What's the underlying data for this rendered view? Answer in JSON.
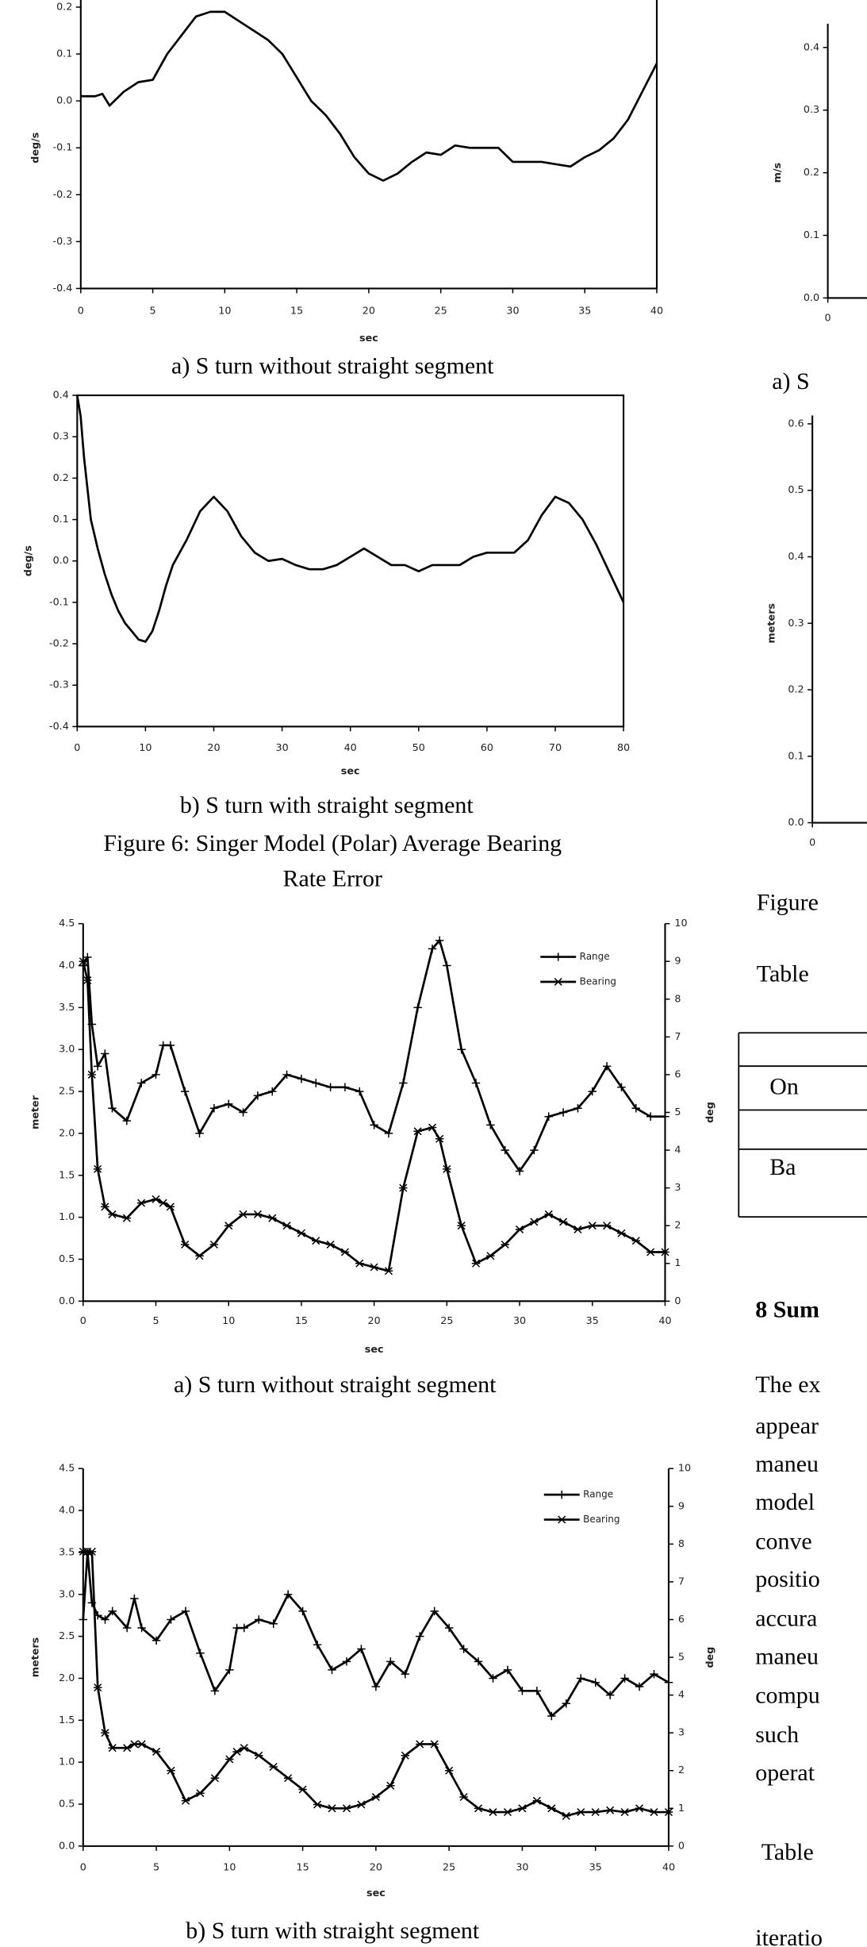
{
  "chart_data": [
    {
      "type": "line",
      "x_label": "sec",
      "y_label": "deg/s",
      "caption": "a) S turn without straight segment",
      "x": [
        0,
        1,
        1.5,
        2,
        3,
        4,
        5,
        6,
        7,
        8,
        9,
        10,
        11,
        12,
        13,
        14,
        15,
        16,
        17,
        18,
        19,
        20,
        21,
        22,
        23,
        24,
        25,
        26,
        27,
        28,
        29,
        30,
        31,
        32,
        33,
        34,
        35,
        36,
        37,
        38,
        39,
        40
      ],
      "series": [
        {
          "color": "#000000",
          "values": [
            0.01,
            0.01,
            0.015,
            -0.01,
            0.02,
            0.04,
            0.045,
            0.1,
            0.14,
            0.18,
            0.19,
            0.19,
            0.17,
            0.15,
            0.13,
            0.1,
            0.05,
            0.0,
            -0.03,
            -0.07,
            -0.12,
            -0.155,
            -0.17,
            -0.155,
            -0.13,
            -0.11,
            -0.115,
            -0.095,
            -0.1,
            -0.1,
            -0.1,
            -0.13,
            -0.13,
            -0.13,
            -0.135,
            -0.14,
            -0.12,
            -0.105,
            -0.08,
            -0.04,
            0.02,
            0.08
          ]
        }
      ],
      "xlim": [
        0,
        40
      ],
      "xticks": [
        0,
        5,
        10,
        15,
        20,
        25,
        30,
        35,
        40
      ],
      "ylim": [
        -0.4,
        0.2
      ],
      "yticks": [
        -0.4,
        -0.3,
        -0.2,
        -0.1,
        {
          "value": 0,
          "label": "0.0"
        },
        0.1,
        0.2
      ]
    },
    {
      "type": "line",
      "x_label": "sec",
      "y_label": "deg/s",
      "caption": "b) S turn with straight segment",
      "x": [
        0,
        0.5,
        1,
        2,
        3,
        4,
        5,
        6,
        7,
        8,
        9,
        10,
        11,
        12,
        13,
        14,
        16,
        18,
        20,
        22,
        24,
        26,
        28,
        30,
        32,
        34,
        36,
        38,
        40,
        42,
        44,
        46,
        48,
        50,
        52,
        54,
        56,
        58,
        60,
        62,
        64,
        66,
        68,
        70,
        72,
        74,
        76,
        78,
        80
      ],
      "series": [
        {
          "color": "#000000",
          "values": [
            0.4,
            0.35,
            0.25,
            0.1,
            0.03,
            -0.03,
            -0.08,
            -0.12,
            -0.15,
            -0.17,
            -0.19,
            -0.195,
            -0.17,
            -0.12,
            -0.06,
            -0.01,
            0.05,
            0.12,
            0.155,
            0.12,
            0.06,
            0.02,
            0.0,
            0.005,
            -0.01,
            -0.02,
            -0.02,
            -0.01,
            0.01,
            0.03,
            0.01,
            -0.01,
            -0.01,
            -0.025,
            -0.01,
            -0.01,
            -0.01,
            0.01,
            0.02,
            0.02,
            0.02,
            0.05,
            0.11,
            0.155,
            0.14,
            0.1,
            0.04,
            -0.03,
            -0.1
          ]
        }
      ],
      "xlim": [
        0,
        80
      ],
      "xticks": [
        0,
        10,
        20,
        30,
        40,
        50,
        60,
        70,
        80
      ],
      "ylim": [
        -0.4,
        0.4
      ],
      "yticks": [
        -0.4,
        -0.3,
        -0.2,
        -0.1,
        {
          "value": 0,
          "label": "0.0"
        },
        0.1,
        0.2,
        0.3,
        0.4
      ]
    },
    {
      "type": "line",
      "x_label": "sec",
      "y_label": "meter",
      "y2_label": "deg",
      "caption": "a) S turn without straight segment",
      "x": [
        0,
        0.3,
        0.6,
        1,
        1.5,
        2,
        3,
        4,
        5,
        5.5,
        6,
        7,
        8,
        9,
        10,
        11,
        12,
        13,
        14,
        15,
        16,
        17,
        18,
        19,
        20,
        21,
        22,
        23,
        24,
        24.5,
        25,
        26,
        27,
        28,
        29,
        30,
        31,
        32,
        33,
        34,
        35,
        36,
        37,
        38,
        39,
        40
      ],
      "series": [
        {
          "name": "Range",
          "color": "#000000",
          "marker": "plus",
          "values": [
            4.0,
            4.1,
            3.3,
            2.8,
            2.95,
            2.3,
            2.15,
            2.6,
            2.7,
            3.05,
            3.05,
            2.5,
            2.0,
            2.3,
            2.35,
            2.25,
            2.45,
            2.5,
            2.7,
            2.65,
            2.6,
            2.55,
            2.55,
            2.5,
            2.1,
            2.0,
            2.6,
            3.5,
            4.2,
            4.3,
            4.0,
            3.0,
            2.6,
            2.1,
            1.8,
            1.55,
            1.8,
            2.2,
            2.25,
            2.3,
            2.5,
            2.8,
            2.55,
            2.3,
            2.2,
            2.2
          ]
        },
        {
          "name": "Bearing",
          "color": "#000000",
          "marker": "star",
          "axis": "y2",
          "values": [
            9.0,
            8.5,
            6.0,
            3.5,
            2.5,
            2.3,
            2.2,
            2.6,
            2.7,
            2.6,
            2.5,
            1.5,
            1.2,
            1.5,
            2.0,
            2.3,
            2.3,
            2.2,
            2.0,
            1.8,
            1.6,
            1.5,
            1.3,
            1.0,
            0.9,
            0.8,
            3.0,
            4.5,
            4.6,
            4.3,
            3.5,
            2.0,
            1.0,
            1.2,
            1.5,
            1.9,
            2.1,
            2.3,
            2.1,
            1.9,
            2.0,
            2.0,
            1.8,
            1.6,
            1.3,
            1.3
          ]
        }
      ],
      "xlim": [
        0,
        40
      ],
      "xticks": [
        0,
        5,
        10,
        15,
        20,
        25,
        30,
        35,
        40
      ],
      "ylim": [
        0,
        4.5
      ],
      "yticks": [
        {
          "value": 0,
          "label": "0.0"
        },
        0.5,
        {
          "value": 1,
          "label": "1.0"
        },
        1.5,
        {
          "value": 2,
          "label": "2.0"
        },
        2.5,
        {
          "value": 3,
          "label": "3.0"
        },
        3.5,
        {
          "value": 4,
          "label": "4.0"
        },
        4.5
      ],
      "y2lim": [
        0,
        10
      ],
      "y2ticks": [
        0,
        1,
        2,
        3,
        4,
        5,
        6,
        7,
        8,
        9,
        10
      ],
      "legend": "top-right"
    },
    {
      "type": "line",
      "x_label": "sec",
      "y_label": "meters",
      "y2_label": "deg",
      "caption": "b) S turn with straight segment",
      "x": [
        0,
        0.3,
        0.6,
        1,
        1.5,
        2,
        3,
        3.5,
        4,
        5,
        6,
        7,
        8,
        9,
        10,
        10.5,
        11,
        12,
        13,
        14,
        15,
        16,
        17,
        18,
        19,
        20,
        21,
        22,
        23,
        24,
        25,
        26,
        27,
        28,
        29,
        30,
        31,
        32,
        33,
        34,
        35,
        36,
        37,
        38,
        39,
        40
      ],
      "series": [
        {
          "name": "Range",
          "color": "#000000",
          "marker": "plus",
          "values": [
            2.7,
            3.5,
            2.9,
            2.75,
            2.7,
            2.8,
            2.6,
            2.95,
            2.6,
            2.45,
            2.7,
            2.8,
            2.3,
            1.85,
            2.1,
            2.6,
            2.6,
            2.7,
            2.65,
            3.0,
            2.8,
            2.4,
            2.1,
            2.2,
            2.35,
            1.9,
            2.2,
            2.05,
            2.5,
            2.8,
            2.6,
            2.35,
            2.2,
            2.0,
            2.1,
            1.85,
            1.85,
            1.55,
            1.7,
            2.0,
            1.95,
            1.8,
            2.0,
            1.9,
            2.05,
            1.95
          ]
        },
        {
          "name": "Bearing",
          "color": "#000000",
          "marker": "star",
          "axis": "y2",
          "values": [
            7.8,
            7.8,
            7.8,
            4.2,
            3.0,
            2.6,
            2.6,
            2.7,
            2.7,
            2.5,
            2.0,
            1.2,
            1.4,
            1.8,
            2.3,
            2.5,
            2.6,
            2.4,
            2.1,
            1.8,
            1.5,
            1.1,
            1.0,
            1.0,
            1.1,
            1.3,
            1.6,
            2.4,
            2.7,
            2.7,
            2.0,
            1.3,
            1.0,
            0.9,
            0.9,
            1.0,
            1.2,
            1.0,
            0.8,
            0.9,
            0.9,
            0.95,
            0.9,
            1.0,
            0.9,
            0.9
          ]
        }
      ],
      "xlim": [
        0,
        40
      ],
      "xticks": [
        0,
        5,
        10,
        15,
        20,
        25,
        30,
        35,
        40
      ],
      "ylim": [
        0,
        4.5
      ],
      "yticks": [
        {
          "value": 0,
          "label": "0.0"
        },
        0.5,
        {
          "value": 1,
          "label": "1.0"
        },
        1.5,
        {
          "value": 2,
          "label": "2.0"
        },
        2.5,
        {
          "value": 3,
          "label": "3.0"
        },
        3.5,
        {
          "value": 4,
          "label": "4.0"
        },
        4.5
      ],
      "y2lim": [
        0,
        10
      ],
      "y2ticks": [
        0,
        1,
        2,
        3,
        4,
        5,
        6,
        7,
        8,
        9,
        10
      ],
      "legend": "top-right"
    },
    {
      "type": "line",
      "y_label": "m/s",
      "caption": "a) S",
      "series": [],
      "xticks": [
        0
      ],
      "ylim": [
        0,
        0.4
      ],
      "yticks": [
        {
          "value": 0,
          "label": "0.0"
        },
        0.1,
        0.2,
        0.3,
        0.4
      ]
    },
    {
      "type": "line",
      "y_label": "meters",
      "series": [],
      "xticks": [
        0
      ],
      "ylim": [
        0,
        0.6
      ],
      "yticks": [
        {
          "value": 0,
          "label": "0.0"
        },
        0.1,
        0.2,
        0.3,
        0.4,
        0.5,
        0.6
      ]
    }
  ],
  "figure_caption": [
    "Figure 6: Singer Model (Polar) Average Bearing",
    "Rate Error"
  ],
  "right_column": {
    "figure_fragment": "Figure",
    "table_fragment": "Table",
    "table_cells": [
      "On",
      "Ba"
    ],
    "heading": "8 Sum",
    "paragraph": [
      "The ex",
      "appear",
      "maneu",
      "model",
      "conve",
      "positio",
      "accura",
      "maneu",
      "compu",
      "such",
      "operat"
    ],
    "paragraph_2": [
      "Table",
      "iteratio"
    ]
  }
}
